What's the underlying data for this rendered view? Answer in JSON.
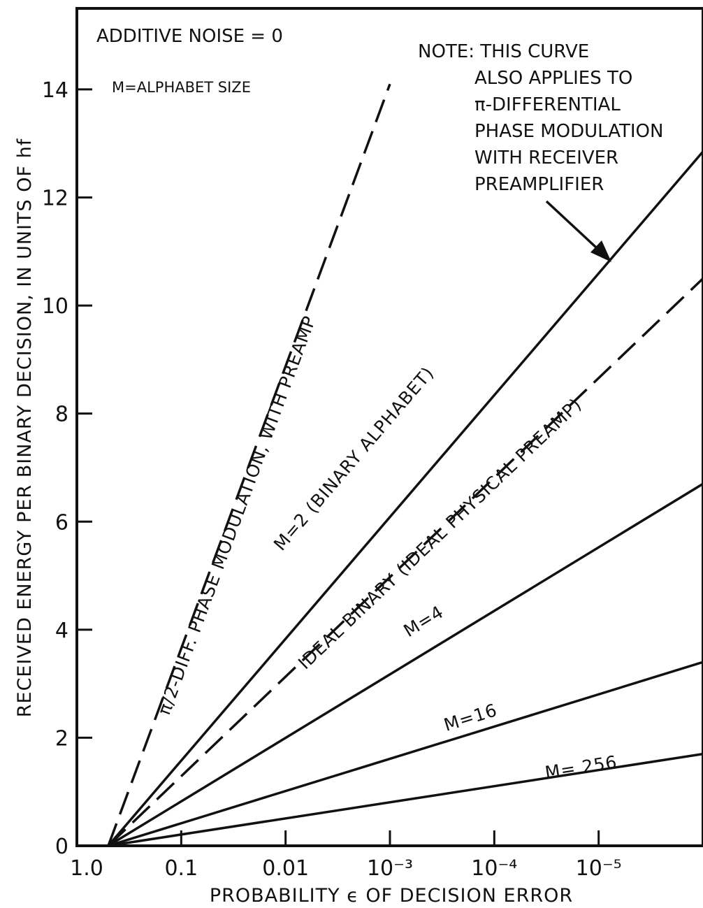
{
  "chart_data": {
    "type": "line",
    "xlabel": "PROBABILITY ϵ OF DECISION ERROR",
    "ylabel": "RECEIVED ENERGY PER BINARY DECISION, IN UNITS OF hf",
    "x_scale": "log, decreasing to the right",
    "x_ticks": [
      {
        "value": 1.0,
        "label": "1.0"
      },
      {
        "value": 0.1,
        "label": "0.1"
      },
      {
        "value": 0.01,
        "label": "0.01"
      },
      {
        "value": 0.001,
        "label": "10⁻³"
      },
      {
        "value": 0.0001,
        "label": "10⁻⁴"
      },
      {
        "value": 1e-05,
        "label": "10⁻⁵"
      }
    ],
    "y_ticks": [
      0,
      2,
      4,
      6,
      8,
      10,
      12,
      14
    ],
    "xlim": [
      1.0,
      1e-06
    ],
    "ylim": [
      0,
      15.5
    ],
    "grid": false,
    "annotations": {
      "top_left_1": "ADDITIVE NOISE = 0",
      "top_left_2": "M=ALPHABET SIZE",
      "note_lines": [
        "NOTE: THIS CURVE",
        "ALSO APPLIES TO",
        "π-DIFFERENTIAL",
        "PHASE MODULATION",
        "WITH RECEIVER",
        "PREAMPLIFIER"
      ]
    },
    "series": [
      {
        "label": "π/2-DIFF. PHASE MODULATION, WITH PREAMP",
        "style": "dashed",
        "x": [
          0.5,
          0.001
        ],
        "y": [
          0,
          14.1
        ]
      },
      {
        "label": "M=2 (BINARY ALPHABET)",
        "style": "solid",
        "x": [
          0.5,
          1e-06
        ],
        "y": [
          0,
          12.85
        ]
      },
      {
        "label": "IDEAL BINARY (IDEAL PHYSICAL PREAMP)",
        "style": "dashed",
        "x": [
          0.5,
          1e-06
        ],
        "y": [
          0,
          10.5
        ]
      },
      {
        "label": "M=4",
        "style": "solid",
        "x": [
          0.5,
          1e-06
        ],
        "y": [
          0,
          6.7
        ]
      },
      {
        "label": "M=16",
        "style": "solid",
        "x": [
          0.5,
          1e-06
        ],
        "y": [
          0,
          3.4
        ]
      },
      {
        "label": "M= 256",
        "style": "solid",
        "x": [
          0.5,
          1e-06
        ],
        "y": [
          0,
          1.7
        ]
      }
    ]
  }
}
